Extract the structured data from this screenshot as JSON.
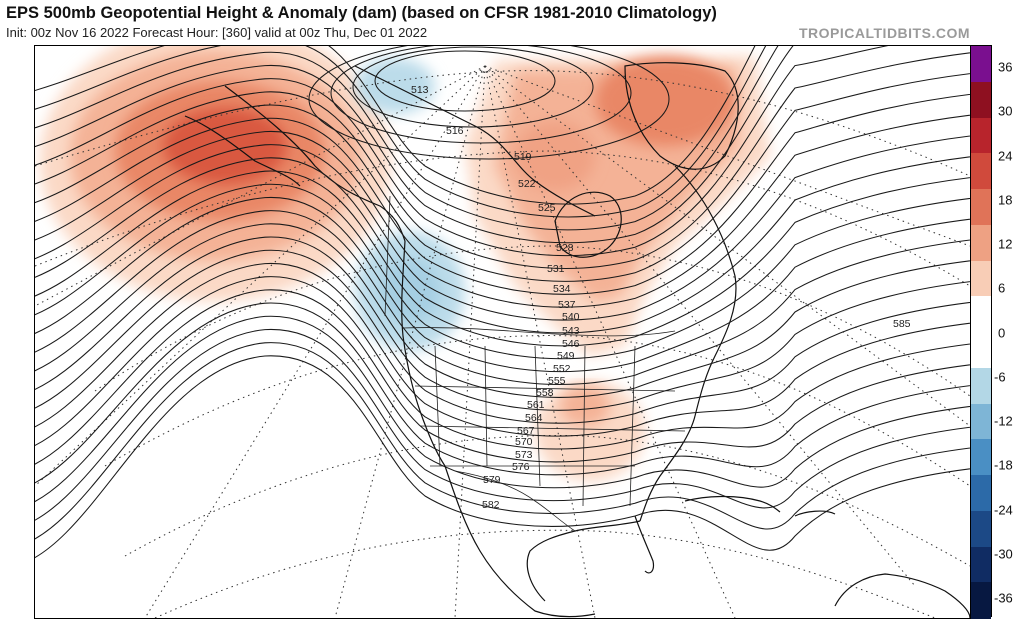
{
  "header": {
    "title": "EPS 500mb Geopotential Height & Anomaly (dam) (based on CFSR 1981-2010 Climatology)",
    "subtitle": "Init: 00z Nov 16 2022   Forecast Hour: [360]   valid at 00z Thu, Dec 01 2022",
    "credit": "TROPICALTIDBITS.COM"
  },
  "colorbar": {
    "labels": [
      "36",
      "30",
      "24",
      "18",
      "12",
      "6",
      "0",
      "-6",
      "-12",
      "-18",
      "-24",
      "-30",
      "-36"
    ],
    "colors": {
      "purple": "#7a0f8f",
      "dark_red": "#8e1020",
      "red": "#b8242c",
      "mid_red": "#d04a3c",
      "orange_red": "#e07358",
      "salmon": "#eea183",
      "light_salmon": "#f8cdb6",
      "white": "#ffffff",
      "light_blue": "#b3d7e6",
      "sky_blue": "#7eb5d6",
      "mid_blue": "#4a8fc4",
      "blue": "#2c6aa8",
      "dark_blue": "#1c4986",
      "navy": "#102c63",
      "deep_navy": "#071841"
    }
  },
  "map": {
    "contour_labels": [
      "513",
      "516",
      "519",
      "522",
      "525",
      "528",
      "531",
      "534",
      "537",
      "540",
      "543",
      "546",
      "549",
      "552",
      "555",
      "558",
      "561",
      "564",
      "567",
      "570",
      "573",
      "576",
      "579",
      "582",
      "585"
    ],
    "anomaly_colors": {
      "positive_light": "#fbd9c6",
      "positive_mid": "#f4b296",
      "positive_strong": "#e98766",
      "positive_max": "#d9593f",
      "negative_light": "#bcdcea",
      "negative_mid": "#a6cfe3"
    }
  }
}
